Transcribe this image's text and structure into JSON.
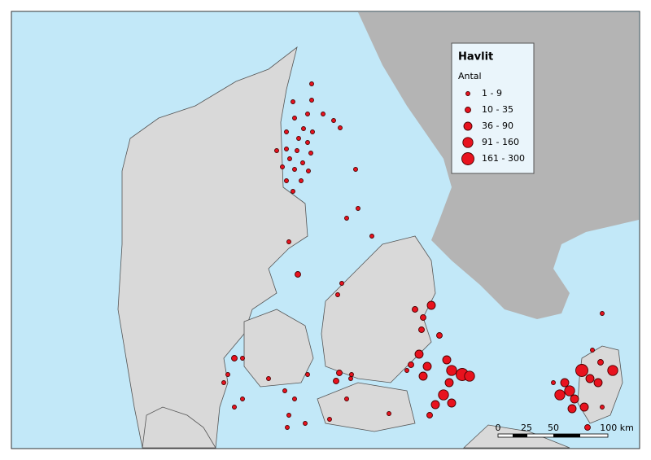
{
  "legend": {
    "title": "Havlit",
    "subtitle": "Antal",
    "classes": [
      "1 - 9",
      "10 - 35",
      "36 - 90",
      "91 - 160",
      "161 - 300"
    ]
  },
  "scale_bar": {
    "labels": [
      "0",
      "25",
      "50",
      "100 km"
    ]
  }
}
